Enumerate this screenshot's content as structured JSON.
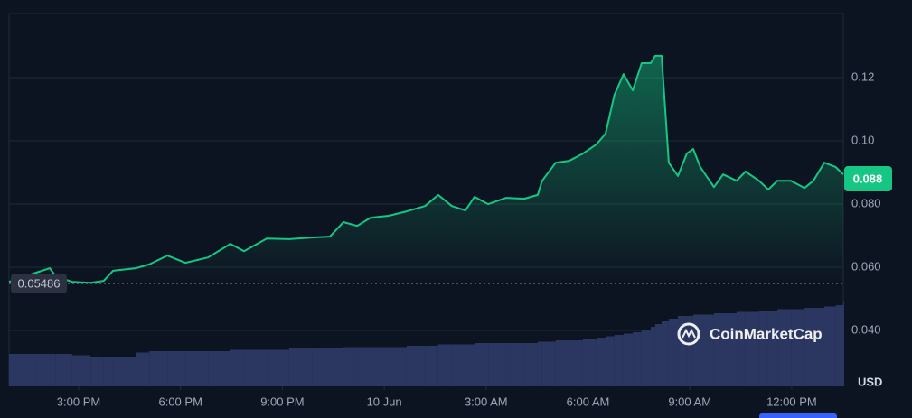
{
  "chart_data": {
    "type": "line",
    "color": "#16c784",
    "currency": "USD",
    "brand": "CoinMarketCap",
    "open_price": 0.05486,
    "last_price": 0.088,
    "x": [
      12.95,
      13.75,
      14.15,
      14.33,
      14.81,
      15.35,
      15.74,
      16.01,
      16.68,
      17.08,
      17.61,
      18.14,
      18.81,
      19.47,
      19.87,
      20.54,
      21.2,
      21.87,
      22.4,
      22.8,
      23.2,
      23.6,
      24.13,
      24.66,
      25.2,
      25.59,
      25.99,
      26.39,
      26.66,
      27.06,
      27.59,
      28.12,
      28.52,
      28.65,
      29.05,
      29.45,
      29.85,
      30.25,
      30.52,
      30.78,
      31.05,
      31.32,
      31.58,
      31.85,
      31.98,
      32.17,
      32.38,
      32.65,
      32.91,
      33.1,
      33.31,
      33.71,
      33.98,
      34.38,
      34.64,
      35.04,
      35.31,
      35.58,
      35.98,
      36.38,
      36.64,
      36.96,
      37.3,
      37.52
    ],
    "values": [
      0.0554,
      0.0583,
      0.0597,
      0.0571,
      0.0554,
      0.0551,
      0.0557,
      0.0589,
      0.0597,
      0.0609,
      0.0637,
      0.0614,
      0.0631,
      0.0674,
      0.0651,
      0.0691,
      0.0689,
      0.0694,
      0.0697,
      0.0743,
      0.0731,
      0.0757,
      0.0763,
      0.0777,
      0.0794,
      0.0829,
      0.0794,
      0.078,
      0.0823,
      0.08,
      0.082,
      0.0817,
      0.0829,
      0.0874,
      0.0931,
      0.0937,
      0.096,
      0.0989,
      0.1023,
      0.1146,
      0.1211,
      0.116,
      0.1246,
      0.1246,
      0.1269,
      0.1269,
      0.0931,
      0.0889,
      0.096,
      0.0974,
      0.0917,
      0.0854,
      0.0894,
      0.0874,
      0.0903,
      0.0874,
      0.0846,
      0.0874,
      0.0874,
      0.0851,
      0.0874,
      0.0931,
      0.0917,
      0.0894
    ],
    "volume": {
      "color": "#2b3760",
      "vlim": [
        0,
        100
      ],
      "values": [
        24,
        24,
        24,
        24,
        23,
        22,
        22,
        22,
        25,
        26,
        26,
        26,
        26,
        27,
        27,
        27,
        28,
        28,
        28,
        29,
        29,
        29,
        29,
        30,
        30,
        31,
        31,
        31,
        32,
        32,
        32,
        32,
        33,
        33,
        34,
        34,
        35,
        36,
        37,
        38,
        39,
        40,
        42,
        44,
        46,
        48,
        50,
        52,
        52,
        53,
        53,
        54,
        54,
        55,
        55,
        56,
        56,
        57,
        57,
        58,
        58,
        59,
        60,
        62
      ]
    },
    "xlim": [
      12.95,
      37.52
    ],
    "ylim": [
      0.0223,
      0.1403
    ],
    "xticks": [
      {
        "value": 15,
        "label": "3:00 PM"
      },
      {
        "value": 18,
        "label": "6:00 PM"
      },
      {
        "value": 21,
        "label": "9:00 PM"
      },
      {
        "value": 24,
        "label": "10 Jun"
      },
      {
        "value": 27,
        "label": "3:00 AM"
      },
      {
        "value": 30,
        "label": "6:00 AM"
      },
      {
        "value": 33,
        "label": "9:00 AM"
      },
      {
        "value": 36,
        "label": "12:00 PM"
      }
    ],
    "yticks": [
      {
        "value": 0.04,
        "label": "0.040"
      },
      {
        "value": 0.06,
        "label": "0.060"
      },
      {
        "value": 0.08,
        "label": "0.080"
      },
      {
        "value": 0.1,
        "label": "0.10"
      },
      {
        "value": 0.12,
        "label": "0.12"
      }
    ],
    "grid": true
  }
}
